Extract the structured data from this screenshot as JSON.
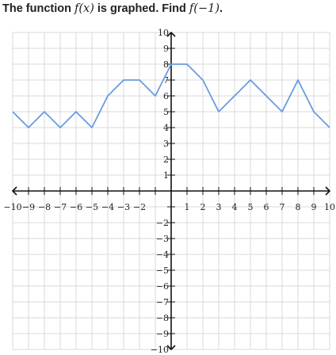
{
  "question": {
    "prefix": "The function ",
    "func": "f(x)",
    "middle": " is graphed. Find ",
    "target": "f(−1)",
    "suffix": "."
  },
  "chart_data": {
    "type": "line",
    "title": "",
    "xlabel": "",
    "ylabel": "",
    "xlim": [
      -10,
      10
    ],
    "ylim": [
      -10,
      10
    ],
    "grid": true,
    "x_ticks": [
      -10,
      -9,
      -8,
      -7,
      -6,
      -5,
      -4,
      -3,
      -2,
      1,
      2,
      3,
      4,
      5,
      6,
      7,
      8,
      9,
      10
    ],
    "y_ticks": [
      10,
      9,
      8,
      7,
      6,
      5,
      4,
      3,
      2,
      1,
      -2,
      -3,
      -4,
      -5,
      -6,
      -7,
      -8,
      -9,
      -10
    ],
    "x_tick_labels": [
      "−10",
      "−9",
      "−8",
      "−7",
      "−6",
      "−5",
      "−4",
      "−3",
      "−2",
      "1",
      "2",
      "3",
      "4",
      "5",
      "6",
      "7",
      "8",
      "9",
      "10"
    ],
    "y_tick_labels": [
      "10",
      "9",
      "8",
      "7",
      "6",
      "5",
      "4",
      "3",
      "2",
      "1",
      "−2",
      "−3",
      "−4",
      "−5",
      "−6",
      "−7",
      "−8",
      "−9",
      "−10"
    ],
    "series": [
      {
        "x": [
          -10,
          -9,
          -8,
          -7,
          -6,
          -5,
          -4,
          -3,
          -2,
          -1,
          0,
          1,
          2,
          3,
          4,
          5,
          6,
          7,
          8,
          9,
          10
        ],
        "y": [
          5,
          4,
          5,
          4,
          5,
          4,
          6,
          7,
          7,
          6,
          8,
          8,
          7,
          5,
          6,
          7,
          6,
          5,
          7,
          5,
          4
        ],
        "color": "#6a9be0"
      }
    ],
    "colors": {
      "grid": "#d9d9d9",
      "axis": "#111111",
      "line": "#6a9be0"
    }
  }
}
